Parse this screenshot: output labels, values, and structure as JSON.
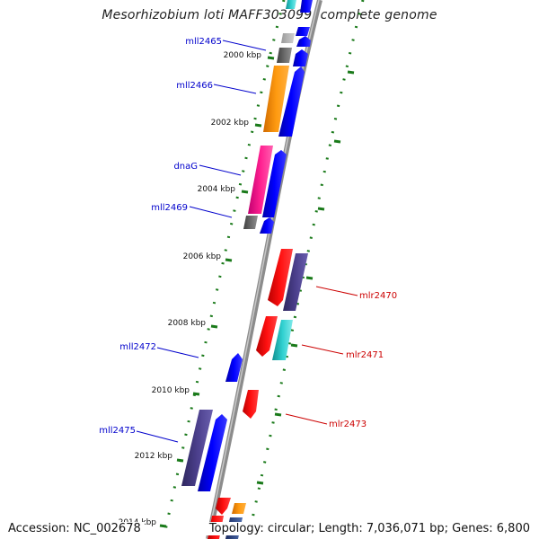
{
  "title": "Mesorhizobium loti MAFF303099, complete genome",
  "footer": {
    "accession": "Accession: NC_002678",
    "topology": "Topology: circular; Length: 7,036,071 bp; Genes: 6,800"
  },
  "ticks": [
    "2000 kbp",
    "2002 kbp",
    "2004 kbp",
    "2006 kbp",
    "2008 kbp",
    "2010 kbp",
    "2012 kbp",
    "2014 kbp"
  ],
  "gene_labels": {
    "mll2465": "mll2465",
    "mll2466": "mll2466",
    "dnaG": "dnaG",
    "mll2469": "mll2469",
    "mlr2470": "mlr2470",
    "mlr2471": "mlr2471",
    "mll2472": "mll2472",
    "mlr2473": "mlr2473",
    "mll2475": "mll2475"
  },
  "colors": {
    "backbone": "#8c8c8c",
    "tick": "#1a7a1a",
    "reverse_label": "#0000cc",
    "forward_label": "#cc0000",
    "blue": "#0000ff",
    "red": "#ee0000",
    "orange": "#ff8c00",
    "magenta": "#ff1493",
    "slate": "#4b3f8c",
    "cyan": "#20c0c0",
    "gray": "#606060"
  }
}
